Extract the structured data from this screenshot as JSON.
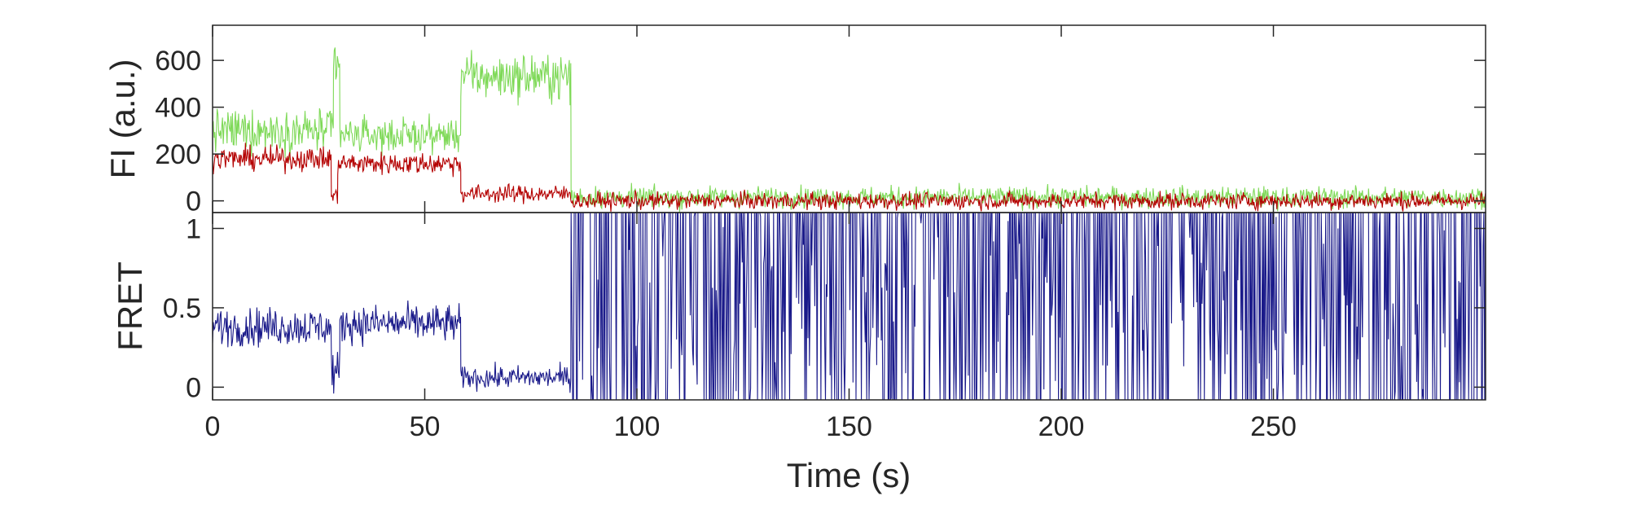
{
  "chart_data": [
    {
      "type": "line",
      "panel": "top",
      "ylabel": "FI (a.u.)",
      "xlabel": "",
      "xlim": [
        0,
        300
      ],
      "ylim": [
        -50,
        750
      ],
      "yticks": [
        0,
        200,
        400,
        600
      ],
      "ytick_labels": [
        "0",
        "200",
        "400",
        "600"
      ],
      "colors": {
        "donor": "#7ed957",
        "acceptor": "#b40000"
      },
      "series": [
        {
          "color_key": "donor",
          "segments": [
            {
              "x": [
                0,
                28.5
              ],
              "mean": 300,
              "noise": 75
            },
            {
              "x": [
                28.5,
                30
              ],
              "mean": 560,
              "noise": 120
            },
            {
              "x": [
                30,
                58.5
              ],
              "mean": 280,
              "noise": 60
            },
            {
              "x": [
                58.5,
                84.5
              ],
              "mean": 530,
              "noise": 80
            },
            {
              "x": [
                84.5,
                300
              ],
              "mean": 15,
              "noise": 38
            }
          ]
        },
        {
          "color_key": "acceptor",
          "segments": [
            {
              "x": [
                0,
                28
              ],
              "mean": 180,
              "noise": 42
            },
            {
              "x": [
                28,
                29.5
              ],
              "mean": 20,
              "noise": 30
            },
            {
              "x": [
                29.5,
                58.5
              ],
              "mean": 160,
              "noise": 40
            },
            {
              "x": [
                58.5,
                84.5
              ],
              "mean": 30,
              "noise": 32
            },
            {
              "x": [
                84.5,
                300
              ],
              "mean": 0,
              "noise": 30
            }
          ]
        }
      ]
    },
    {
      "type": "line",
      "panel": "bottom",
      "ylabel": "FRET",
      "xlabel": "Time (s)",
      "xlim": [
        0,
        300
      ],
      "ylim": [
        -0.08,
        1.1
      ],
      "xticks": [
        0,
        50,
        100,
        150,
        200,
        250
      ],
      "xtick_labels": [
        "0",
        "50",
        "100",
        "150",
        "200",
        "250"
      ],
      "yticks": [
        0,
        0.5,
        1
      ],
      "ytick_labels": [
        "0",
        "0.5",
        "1"
      ],
      "colors": {
        "fret": "#1a1a8a"
      },
      "series": [
        {
          "color_key": "fret",
          "segments": [
            {
              "x": [
                0,
                28
              ],
              "mean": 0.38,
              "noise": 0.1
            },
            {
              "x": [
                28,
                30
              ],
              "mean": 0.1,
              "noise": 0.12
            },
            {
              "x": [
                30,
                58.5
              ],
              "mean": 0.4,
              "noise": 0.1
            },
            {
              "x": [
                58.5,
                84.5
              ],
              "mean": 0.06,
              "noise": 0.06
            },
            {
              "x": [
                84.5,
                300
              ],
              "mean": 0.5,
              "noise": 0.6
            }
          ]
        }
      ]
    }
  ]
}
